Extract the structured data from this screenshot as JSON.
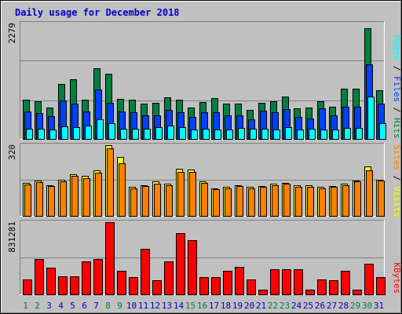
{
  "chart_data": [
    {
      "type": "bar",
      "title": "Daily usage for December 2018",
      "ymax_label": "2279",
      "legend": [
        "Pages",
        "Files",
        "Hits"
      ],
      "categories": [
        "1",
        "2",
        "3",
        "4",
        "5",
        "6",
        "7",
        "8",
        "9",
        "10",
        "11",
        "12",
        "13",
        "14",
        "15",
        "16",
        "17",
        "18",
        "19",
        "20",
        "21",
        "22",
        "23",
        "24",
        "25",
        "26",
        "27",
        "28",
        "29",
        "30",
        "31"
      ],
      "weekend_days": [
        "1",
        "2",
        "8",
        "9",
        "15",
        "16",
        "22",
        "23",
        "29",
        "30"
      ],
      "ylim": [
        0,
        2279
      ],
      "series": [
        {
          "name": "Hits",
          "values": [
            780,
            750,
            620,
            1080,
            1180,
            780,
            1390,
            1280,
            790,
            780,
            700,
            710,
            820,
            770,
            620,
            730,
            800,
            700,
            700,
            570,
            720,
            740,
            840,
            610,
            620,
            750,
            640,
            990,
            990,
            2180,
            960
          ]
        },
        {
          "name": "Files",
          "values": [
            540,
            510,
            450,
            760,
            690,
            550,
            980,
            720,
            540,
            530,
            470,
            470,
            580,
            530,
            440,
            520,
            530,
            470,
            470,
            380,
            560,
            530,
            590,
            430,
            410,
            600,
            460,
            630,
            640,
            1470,
            690
          ]
        },
        {
          "name": "Pages",
          "values": [
            200,
            200,
            190,
            250,
            230,
            270,
            390,
            310,
            200,
            200,
            200,
            230,
            270,
            240,
            180,
            200,
            180,
            180,
            210,
            200,
            200,
            190,
            230,
            190,
            200,
            190,
            180,
            210,
            220,
            840,
            310
          ]
        }
      ]
    },
    {
      "type": "bar",
      "ymax_label": "320",
      "legend": [
        "Sites",
        "Visits"
      ],
      "ylim": [
        0,
        320
      ],
      "series": [
        {
          "name": "Visits",
          "values": [
            150,
            160,
            140,
            165,
            190,
            180,
            205,
            320,
            265,
            130,
            140,
            155,
            145,
            215,
            210,
            155,
            125,
            130,
            140,
            130,
            135,
            145,
            150,
            140,
            140,
            130,
            135,
            145,
            160,
            225,
            165
          ]
        },
        {
          "name": "Sites",
          "values": [
            142,
            152,
            136,
            158,
            180,
            170,
            195,
            305,
            237,
            125,
            135,
            145,
            140,
            200,
            200,
            148,
            120,
            125,
            135,
            125,
            130,
            140,
            145,
            132,
            132,
            125,
            132,
            138,
            155,
            205,
            160
          ]
        }
      ]
    },
    {
      "type": "bar",
      "ymax_label": "831281",
      "legend": [
        "KBytes"
      ],
      "ylim": [
        0,
        831281
      ],
      "series": [
        {
          "name": "KBytes",
          "values": [
            170000,
            405000,
            305000,
            210000,
            210000,
            380000,
            410000,
            831281,
            275000,
            195000,
            520000,
            160000,
            375000,
            705000,
            620000,
            195000,
            200000,
            275000,
            315000,
            170000,
            50000,
            285000,
            285000,
            285000,
            50000,
            170000,
            160000,
            270000,
            55000,
            355000,
            200000
          ]
        }
      ]
    }
  ],
  "colors": {
    "background": "#c0c0c0",
    "title": "#0000cc",
    "hits": "#008040",
    "files": "#0040ff",
    "pages": "#00ffff",
    "visits": "#ffff00",
    "sites": "#ff8000",
    "kbytes": "#ff0000",
    "weekday_label": "#0000cc",
    "weekend_label": "#008040"
  }
}
